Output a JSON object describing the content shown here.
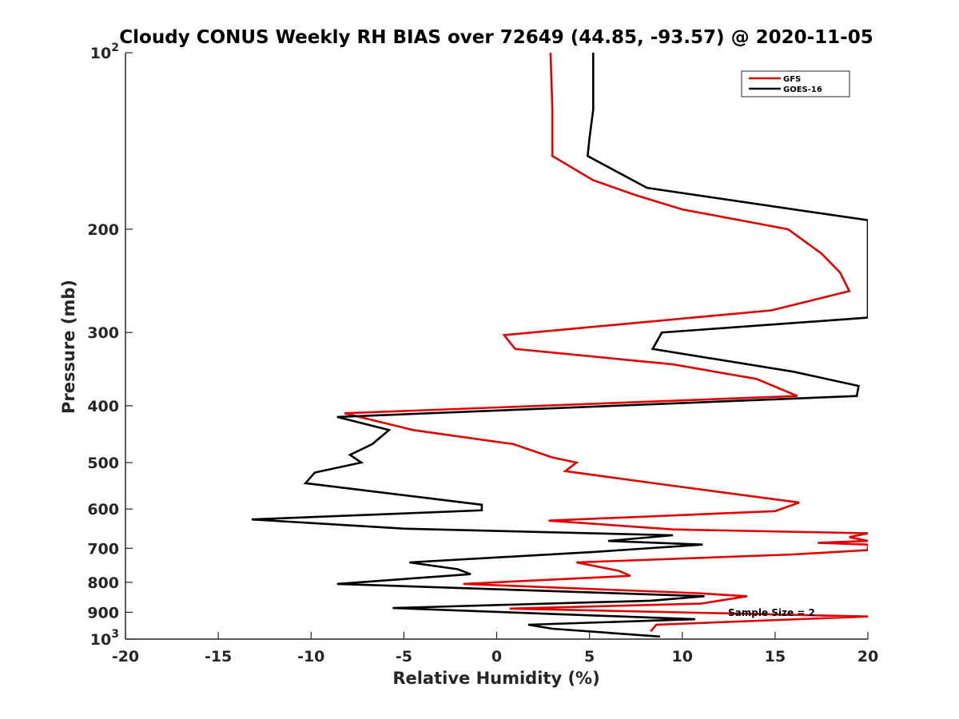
{
  "chart_data": {
    "type": "line",
    "title": "Cloudy CONUS Weekly RH BIAS over 72649 (44.85, -93.57) @ 2020-11-05",
    "xlabel": "Relative Humidity (%)",
    "ylabel": "Pressure (mb)",
    "xlim": [
      -20,
      20
    ],
    "ylim": [
      100,
      1000
    ],
    "y_scale": "log",
    "y_reversed": true,
    "grid": false,
    "legend_position": "top-right",
    "x_ticks": [
      "-20",
      "-15",
      "-10",
      "-5",
      "0",
      "5",
      "10",
      "15",
      "20"
    ],
    "y_ticks": [
      {
        "value": 100,
        "base": "10",
        "exp": "2"
      },
      {
        "value": 200,
        "label": "200"
      },
      {
        "value": 300,
        "label": "300"
      },
      {
        "value": 400,
        "label": "400"
      },
      {
        "value": 500,
        "label": "500"
      },
      {
        "value": 600,
        "label": "600"
      },
      {
        "value": 700,
        "label": "700"
      },
      {
        "value": 800,
        "label": "800"
      },
      {
        "value": 900,
        "label": "900"
      },
      {
        "value": 1000,
        "base": "10",
        "exp": "3"
      }
    ],
    "annotation": "Sample Size = 2",
    "series": [
      {
        "name": "GFS",
        "color": "#e00000",
        "points": [
          [
            2.9,
            100
          ],
          [
            3.0,
            125
          ],
          [
            3.0,
            150
          ],
          [
            5.2,
            165
          ],
          [
            7.5,
            175
          ],
          [
            10.0,
            185
          ],
          [
            15.7,
            200
          ],
          [
            17.5,
            220
          ],
          [
            18.5,
            237
          ],
          [
            19.0,
            255
          ],
          [
            14.8,
            275
          ],
          [
            0.4,
            303
          ],
          [
            1.0,
            320
          ],
          [
            9.5,
            340
          ],
          [
            14.0,
            360
          ],
          [
            16.2,
            385
          ],
          [
            -8.2,
            412
          ],
          [
            -4.5,
            440
          ],
          [
            0.9,
            465
          ],
          [
            3.0,
            490
          ],
          [
            4.3,
            500
          ],
          [
            3.7,
            517
          ],
          [
            9.0,
            545
          ],
          [
            16.3,
            585
          ],
          [
            15.0,
            605
          ],
          [
            2.8,
            628
          ],
          [
            9.5,
            650
          ],
          [
            20.0,
            660
          ],
          [
            19.0,
            670
          ],
          [
            20.0,
            680
          ],
          [
            17.3,
            685
          ],
          [
            20.0,
            690
          ],
          [
            20.0,
            705
          ],
          [
            16.0,
            717
          ],
          [
            4.3,
            740
          ],
          [
            6.6,
            765
          ],
          [
            7.2,
            780
          ],
          [
            -1.8,
            805
          ],
          [
            10.8,
            835
          ],
          [
            13.5,
            845
          ],
          [
            11.0,
            870
          ],
          [
            0.7,
            887
          ],
          [
            20.0,
            915
          ],
          [
            8.6,
            945
          ],
          [
            8.3,
            970
          ]
        ]
      },
      {
        "name": "GOES-16",
        "color": "#000000",
        "points": [
          [
            5.2,
            100
          ],
          [
            5.2,
            125
          ],
          [
            5.0,
            140
          ],
          [
            4.9,
            150
          ],
          [
            8.1,
            170
          ],
          [
            16.5,
            186
          ],
          [
            20.0,
            193
          ],
          [
            20.0,
            283
          ],
          [
            8.9,
            300
          ],
          [
            8.4,
            320
          ],
          [
            16.0,
            350
          ],
          [
            19.5,
            370
          ],
          [
            19.4,
            385
          ],
          [
            -8.6,
            418
          ],
          [
            -5.8,
            440
          ],
          [
            -6.7,
            465
          ],
          [
            -7.9,
            485
          ],
          [
            -7.3,
            500
          ],
          [
            -9.8,
            520
          ],
          [
            -10.3,
            542
          ],
          [
            -0.8,
            590
          ],
          [
            -0.8,
            603
          ],
          [
            -13.2,
            625
          ],
          [
            -5.0,
            648
          ],
          [
            9.5,
            665
          ],
          [
            6.0,
            680
          ],
          [
            11.1,
            690
          ],
          [
            5.3,
            710
          ],
          [
            -4.7,
            740
          ],
          [
            -2.1,
            760
          ],
          [
            -1.4,
            775
          ],
          [
            -8.6,
            805
          ],
          [
            11.2,
            845
          ],
          [
            8.3,
            860
          ],
          [
            -5.6,
            885
          ],
          [
            10.7,
            925
          ],
          [
            1.7,
            945
          ],
          [
            3.0,
            960
          ],
          [
            8.8,
            990
          ]
        ]
      }
    ]
  }
}
